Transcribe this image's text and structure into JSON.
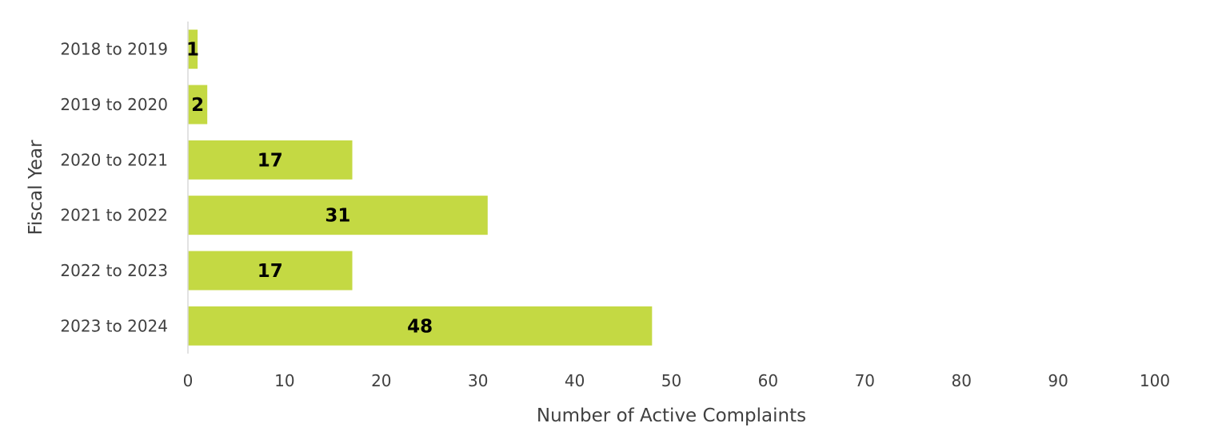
{
  "chart_data": {
    "type": "bar",
    "orientation": "horizontal",
    "title": "",
    "categories": [
      "2018 to 2019",
      "2019 to 2020",
      "2020 to 2021",
      "2021 to 2022",
      "2022 to 2023",
      "2023 to 2024"
    ],
    "values": [
      1,
      2,
      17,
      31,
      17,
      48
    ],
    "data_labels": [
      "1",
      "2",
      "17",
      "31",
      "17",
      "48"
    ],
    "xlabel": "Number of Active Complaints",
    "ylabel": "Fiscal Year",
    "xlim": [
      0,
      100
    ],
    "xticks": [
      0,
      10,
      20,
      30,
      40,
      50,
      60,
      70,
      80,
      90,
      100
    ],
    "xtick_labels": [
      "0",
      "10",
      "20",
      "30",
      "40",
      "50",
      "60",
      "70",
      "80",
      "90",
      "100"
    ],
    "grid": false,
    "legend": "none",
    "bar_color": "#c4d943",
    "axis_color": "#d9d9d9",
    "text_color": "#404040"
  }
}
